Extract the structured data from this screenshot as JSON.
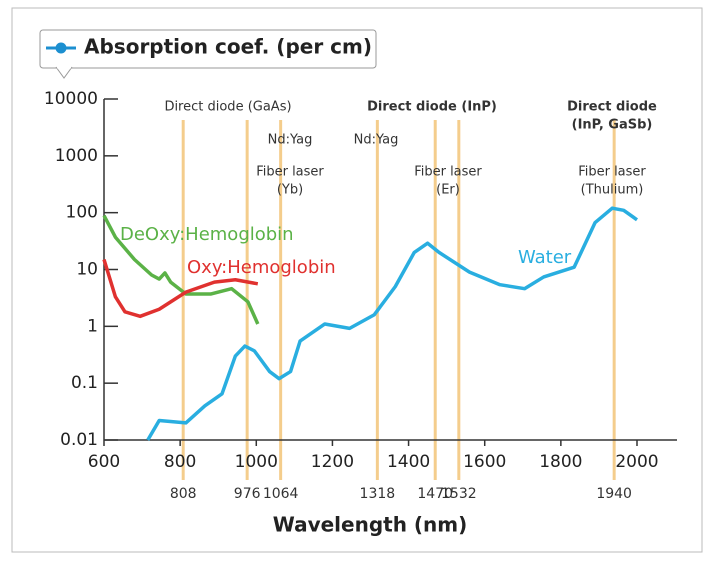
{
  "chart_data": {
    "type": "line",
    "legend_title": "Absorption coef. (per cm)",
    "x_label": "Wavelength (nm)",
    "log_y": true,
    "xlim": [
      600,
      2000
    ],
    "xticks": [
      600,
      800,
      1000,
      1200,
      1400,
      1600,
      1800,
      2000
    ],
    "ylim": [
      0.01,
      10000
    ],
    "yticks": [
      10000,
      1000,
      100,
      10,
      1,
      0.1,
      0.01
    ],
    "markers": [
      808,
      976,
      1064,
      1318,
      1470,
      1532,
      1940
    ],
    "marker_color": "#f4cd8c",
    "annotations": [
      {
        "lines": [
          "Direct diode (GaAs)"
        ],
        "bold": false
      },
      {
        "lines": [
          "Nd:Yag"
        ],
        "bold": false
      },
      {
        "lines": [
          "Fiber laser",
          "(Yb)"
        ],
        "bold": false
      },
      {
        "lines": [
          "Nd:Yag"
        ],
        "bold": false
      },
      {
        "lines": [
          "Direct diode (InP)"
        ],
        "bold": true
      },
      {
        "lines": [
          "Fiber laser",
          "(Er)"
        ],
        "bold": false
      },
      {
        "lines": [
          "Direct diode",
          "(InP, GaSb)"
        ],
        "bold": true
      },
      {
        "lines": [
          "Fiber laser",
          "(Thulium)"
        ],
        "bold": false
      }
    ],
    "series": [
      {
        "name": "DeOxy:Hemoglobin",
        "color": "#5bb247",
        "x": [
          600,
          630,
          680,
          725,
          745,
          760,
          775,
          815,
          880,
          935,
          978,
          1004
        ],
        "values": [
          89,
          37,
          15,
          8,
          6.8,
          8.7,
          6,
          3.7,
          3.7,
          4.6,
          2.7,
          1.1
        ]
      },
      {
        "name": "Oxy:Hemoglobin",
        "color": "#e0312f",
        "x": [
          600,
          630,
          655,
          695,
          745,
          815,
          890,
          945,
          1004
        ],
        "values": [
          15,
          3.3,
          1.8,
          1.5,
          2,
          4,
          6,
          6.6,
          5.6
        ]
      },
      {
        "name": "Water",
        "color": "#29aee0",
        "x": [
          715,
          745,
          815,
          865,
          910,
          945,
          970,
          995,
          1035,
          1060,
          1090,
          1115,
          1180,
          1245,
          1310,
          1365,
          1415,
          1450,
          1480,
          1560,
          1640,
          1705,
          1755,
          1835,
          1890,
          1935,
          1965,
          2000
        ],
        "values": [
          0.01,
          0.022,
          0.02,
          0.04,
          0.065,
          0.3,
          0.45,
          0.37,
          0.16,
          0.12,
          0.16,
          0.55,
          1.1,
          0.92,
          1.6,
          5,
          20,
          29,
          20,
          9,
          5.4,
          4.6,
          7.4,
          11,
          67,
          120,
          110,
          75
        ]
      }
    ]
  }
}
